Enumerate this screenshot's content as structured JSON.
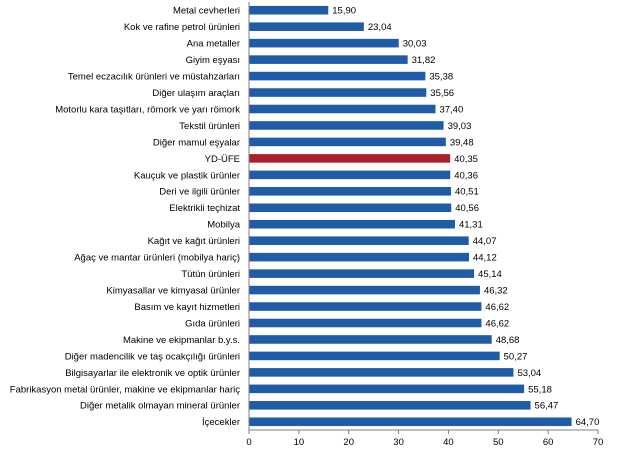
{
  "chart_data": {
    "type": "bar",
    "orientation": "horizontal",
    "title": "",
    "xlabel": "",
    "ylabel": "",
    "xlim": [
      0,
      70
    ],
    "xticks": [
      0,
      10,
      20,
      30,
      40,
      50,
      60,
      70
    ],
    "grid": false,
    "legend": "none",
    "bar_color": "#1f5ba6",
    "highlight_color": "#a9202a",
    "highlight_category": "YD-ÜFE",
    "categories": [
      "Metal cevherleri",
      "Kok ve rafine petrol ürünleri",
      "Ana metaller",
      "Giyim eşyası",
      "Temel eczacılık ürünleri ve müstahzarları",
      "Diğer ulaşım araçları",
      "Motorlu kara taşıtları, römork ve yarı römork",
      "Tekstil ürünleri",
      "Diğer mamul eşyalar",
      "YD-ÜFE",
      "Kauçuk ve plastik ürünler",
      "Deri ve ilgili ürünler",
      "Elektrikli teçhizat",
      "Mobilya",
      "Kağıt ve kağıt ürünleri",
      "Ağaç ve mantar ürünleri (mobilya hariç)",
      "Tütün ürünleri",
      "Kimyasallar ve kimyasal ürünler",
      "Basım ve kayıt hizmetleri",
      "Gıda ürünleri",
      "Makine ve ekipmanlar b.y.s.",
      "Diğer madencilik ve taş ocakçılığı ürünleri",
      "Bilgisayarlar ile elektronik ve optik ürünler",
      "Fabrikasyon metal ürünler, makine ve ekipmanlar hariç",
      "Diğer metalik olmayan mineral ürünler",
      "İçecekler"
    ],
    "values": [
      15.9,
      23.04,
      30.03,
      31.82,
      35.38,
      35.56,
      37.4,
      39.03,
      39.48,
      40.35,
      40.36,
      40.51,
      40.56,
      41.31,
      44.07,
      44.12,
      45.14,
      46.32,
      46.62,
      46.62,
      48.68,
      50.27,
      53.04,
      55.18,
      56.47,
      64.7
    ],
    "value_labels": [
      "15,90",
      "23,04",
      "30,03",
      "31,82",
      "35,38",
      "35,56",
      "37,40",
      "39,03",
      "39,48",
      "40,35",
      "40,36",
      "40,51",
      "40,56",
      "41,31",
      "44,07",
      "44,12",
      "45,14",
      "46,32",
      "46,62",
      "46,62",
      "48,68",
      "50,27",
      "53,04",
      "55,18",
      "56,47",
      "64,70"
    ]
  }
}
